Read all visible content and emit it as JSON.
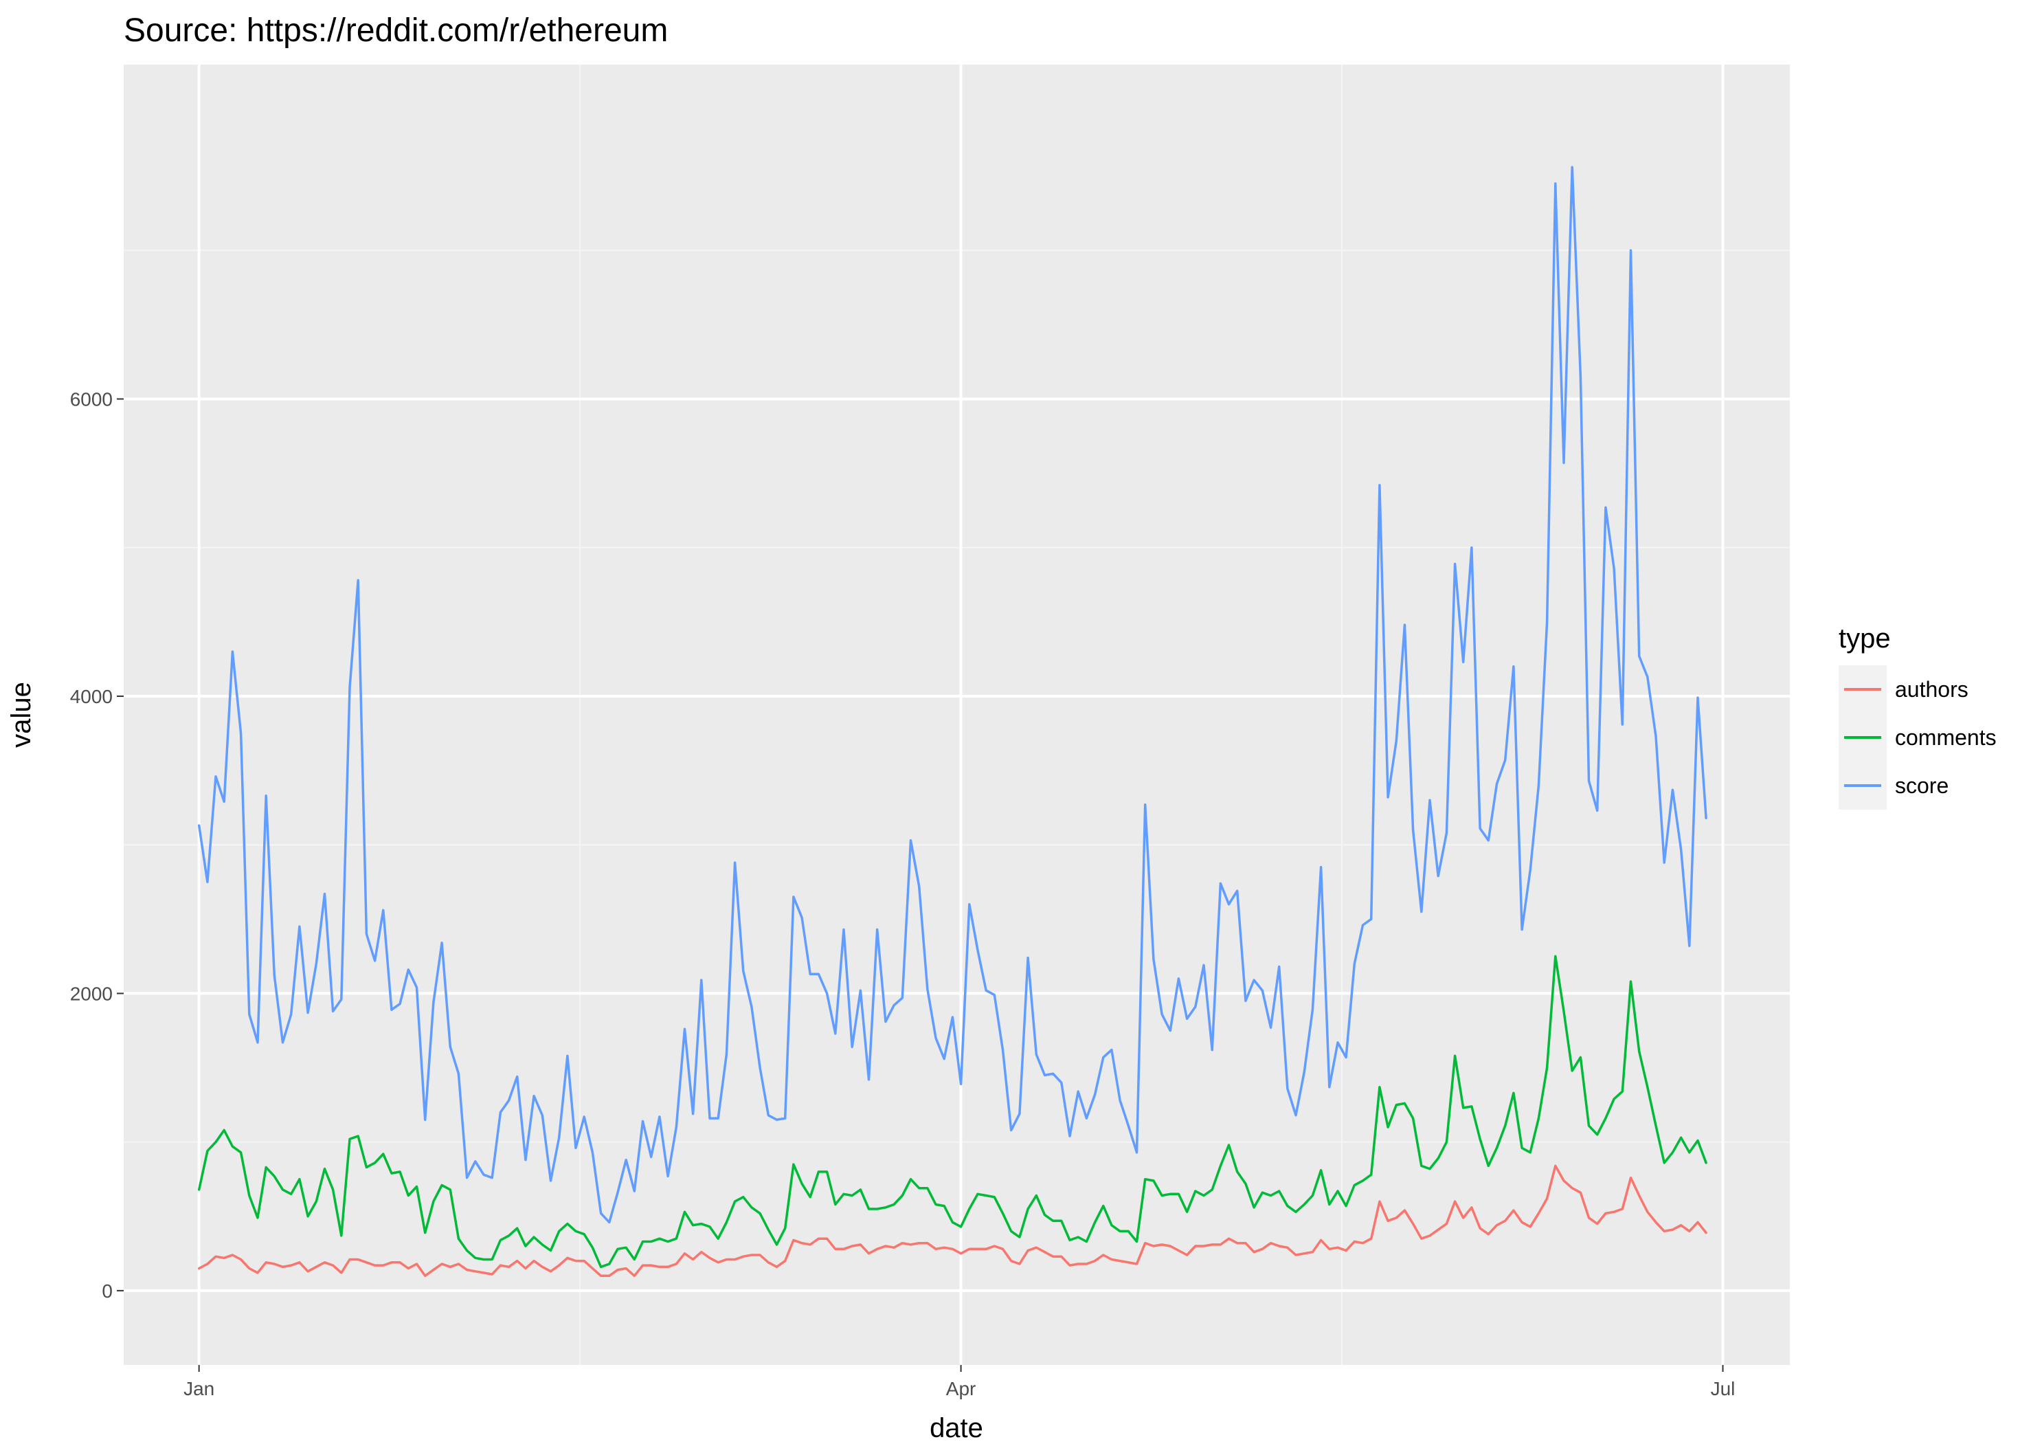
{
  "chart_data": {
    "type": "line",
    "title": "Source: https://reddit.com/r/ethereum",
    "xlabel": "date",
    "ylabel": "value",
    "x_start": "2016-01-01",
    "x_ticks": [
      {
        "day": 0,
        "label": "Jan"
      },
      {
        "day": 91,
        "label": "Apr"
      },
      {
        "day": 182,
        "label": "Jul"
      }
    ],
    "x_minor_days": [
      45.5,
      136.5
    ],
    "xlim_days": [
      -9,
      190
    ],
    "ylim": [
      -500,
      8250
    ],
    "y_ticks": [
      0,
      2000,
      4000,
      6000
    ],
    "y_minor": [
      1000,
      3000,
      5000,
      7000
    ],
    "legend": {
      "title": "type",
      "position": "right"
    },
    "series": [
      {
        "name": "authors",
        "color": "#F8766D",
        "values": [
          150,
          180,
          230,
          220,
          240,
          210,
          150,
          120,
          190,
          180,
          160,
          170,
          190,
          130,
          160,
          190,
          170,
          120,
          210,
          210,
          190,
          170,
          170,
          190,
          190,
          150,
          180,
          100,
          140,
          180,
          160,
          180,
          140,
          130,
          120,
          110,
          170,
          160,
          200,
          150,
          200,
          160,
          130,
          170,
          220,
          200,
          200,
          150,
          100,
          100,
          140,
          150,
          100,
          170,
          170,
          160,
          160,
          180,
          250,
          210,
          260,
          220,
          190,
          210,
          210,
          230,
          240,
          240,
          190,
          160,
          200,
          340,
          320,
          310,
          350,
          350,
          280,
          280,
          300,
          310,
          250,
          280,
          300,
          290,
          320,
          310,
          320,
          320,
          280,
          290,
          280,
          250,
          280,
          280,
          280,
          300,
          280,
          200,
          180,
          270,
          290,
          260,
          230,
          230,
          170,
          180,
          180,
          200,
          240,
          210,
          200,
          190,
          180,
          320,
          300,
          310,
          300,
          270,
          240,
          300,
          300,
          310,
          310,
          350,
          320,
          320,
          260,
          280,
          320,
          300,
          290,
          240,
          250,
          260,
          340,
          280,
          290,
          270,
          330,
          320,
          350,
          600,
          470,
          490,
          540,
          450,
          350,
          370,
          410,
          450,
          600,
          490,
          560,
          420,
          380,
          440,
          470,
          540,
          460,
          430,
          520,
          620,
          840,
          740,
          690,
          660,
          490,
          450,
          520,
          530,
          550,
          760,
          640,
          530,
          460,
          400,
          410,
          440,
          400,
          460,
          390
        ]
      },
      {
        "name": "comments",
        "color": "#00BA38",
        "values": [
          680,
          940,
          1000,
          1080,
          970,
          930,
          640,
          490,
          830,
          770,
          680,
          650,
          750,
          500,
          600,
          820,
          680,
          370,
          1020,
          1040,
          830,
          860,
          920,
          790,
          800,
          640,
          700,
          390,
          600,
          710,
          680,
          350,
          270,
          220,
          210,
          210,
          340,
          370,
          420,
          300,
          360,
          310,
          270,
          400,
          450,
          400,
          380,
          290,
          160,
          180,
          280,
          290,
          210,
          330,
          330,
          350,
          330,
          350,
          530,
          440,
          450,
          430,
          350,
          460,
          600,
          630,
          560,
          520,
          410,
          310,
          420,
          850,
          720,
          630,
          800,
          800,
          580,
          650,
          640,
          680,
          550,
          550,
          560,
          580,
          640,
          750,
          690,
          690,
          580,
          570,
          460,
          430,
          550,
          650,
          640,
          630,
          520,
          400,
          360,
          550,
          640,
          510,
          470,
          470,
          340,
          360,
          330,
          460,
          570,
          440,
          400,
          400,
          330,
          750,
          740,
          640,
          650,
          650,
          530,
          670,
          640,
          680,
          840,
          980,
          800,
          720,
          560,
          660,
          640,
          670,
          570,
          530,
          580,
          640,
          810,
          580,
          670,
          570,
          710,
          740,
          780,
          1370,
          1100,
          1250,
          1260,
          1160,
          840,
          820,
          890,
          1000,
          1580,
          1230,
          1240,
          1020,
          840,
          960,
          1110,
          1330,
          960,
          930,
          1160,
          1500,
          2250,
          1880,
          1480,
          1570,
          1110,
          1050,
          1160,
          1290,
          1340,
          2080,
          1610,
          1370,
          1110,
          860,
          930,
          1030,
          930,
          1010,
          860
        ]
      },
      {
        "name": "score",
        "color": "#619CFF",
        "values": [
          3130,
          2750,
          3460,
          3290,
          4300,
          3750,
          1860,
          1670,
          3330,
          2120,
          1670,
          1860,
          2450,
          1870,
          2200,
          2670,
          1880,
          1960,
          4060,
          4780,
          2400,
          2220,
          2560,
          1890,
          1930,
          2160,
          2040,
          1150,
          1940,
          2340,
          1640,
          1460,
          760,
          870,
          780,
          760,
          1200,
          1280,
          1440,
          880,
          1310,
          1180,
          740,
          1030,
          1580,
          960,
          1170,
          930,
          520,
          460,
          660,
          880,
          670,
          1140,
          900,
          1170,
          770,
          1100,
          1760,
          1190,
          2090,
          1160,
          1160,
          1590,
          2880,
          2150,
          1910,
          1500,
          1180,
          1150,
          1160,
          2650,
          2510,
          2130,
          2130,
          2000,
          1730,
          2430,
          1640,
          2020,
          1420,
          2430,
          1810,
          1920,
          1970,
          3030,
          2720,
          2030,
          1700,
          1560,
          1840,
          1390,
          2600,
          2290,
          2020,
          1990,
          1620,
          1080,
          1190,
          2240,
          1590,
          1450,
          1460,
          1400,
          1040,
          1340,
          1160,
          1320,
          1570,
          1620,
          1280,
          1110,
          930,
          3270,
          2230,
          1860,
          1750,
          2100,
          1830,
          1910,
          2190,
          1620,
          2740,
          2600,
          2690,
          1950,
          2090,
          2020,
          1770,
          2180,
          1360,
          1180,
          1470,
          1890,
          2850,
          1370,
          1670,
          1570,
          2200,
          2460,
          2500,
          5420,
          3320,
          3700,
          4480,
          3100,
          2550,
          3300,
          2790,
          3080,
          4890,
          4230,
          5000,
          3110,
          3030,
          3410,
          3570,
          4200,
          2430,
          2830,
          3400,
          4500,
          7450,
          5570,
          7560,
          6150,
          3430,
          3230,
          5270,
          4860,
          3810,
          7000,
          4270,
          4130,
          3730,
          2880,
          3370,
          2970,
          2320,
          3990,
          3180
        ]
      }
    ]
  }
}
